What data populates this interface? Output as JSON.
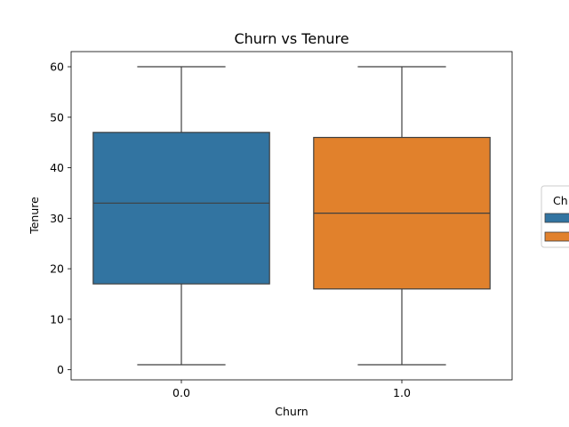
{
  "chart_data": {
    "type": "box",
    "title": "Churn vs Tenure",
    "xlabel": "Churn",
    "ylabel": "Tenure",
    "categories": [
      "0.0",
      "1.0"
    ],
    "ylim": [
      -2,
      63
    ],
    "yticks": [
      0,
      10,
      20,
      30,
      40,
      50,
      60
    ],
    "boxes": [
      {
        "category": "0.0",
        "whisker_low": 1,
        "q1": 17,
        "median": 33,
        "q3": 47,
        "whisker_high": 60,
        "color": "#3274a1"
      },
      {
        "category": "1.0",
        "whisker_low": 1,
        "q1": 16,
        "median": 31,
        "q3": 46,
        "whisker_high": 60,
        "color": "#e1812c"
      }
    ],
    "legend": {
      "title": "Ch",
      "placement": "right",
      "entries": [
        {
          "label": "",
          "color": "#3274a1"
        },
        {
          "label": "",
          "color": "#e1812c"
        }
      ]
    },
    "grid": false
  }
}
